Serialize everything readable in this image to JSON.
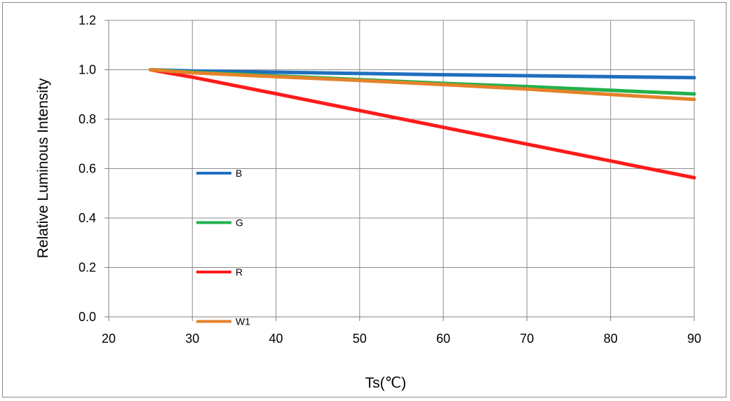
{
  "chart_data": {
    "type": "line",
    "xlabel": "Ts(℃)",
    "ylabel": "Relative Luminous Intensity",
    "xlim": [
      20,
      90
    ],
    "ylim": [
      0.0,
      1.2
    ],
    "x_ticks": [
      "20",
      "30",
      "40",
      "50",
      "60",
      "70",
      "80",
      "90"
    ],
    "y_ticks": [
      "0.0",
      "0.2",
      "0.4",
      "0.6",
      "0.8",
      "1.0",
      "1.2"
    ],
    "grid": true,
    "legend_position": "inside-left",
    "series": [
      {
        "name": "B",
        "color": "#1f6fbf",
        "x": [
          25,
          30,
          40,
          50,
          60,
          70,
          80,
          90
        ],
        "y": [
          1.0,
          0.995,
          0.99,
          0.985,
          0.98,
          0.976,
          0.972,
          0.968
        ]
      },
      {
        "name": "G",
        "color": "#22b14c",
        "x": [
          25,
          30,
          40,
          50,
          60,
          70,
          80,
          90
        ],
        "y": [
          1.0,
          0.99,
          0.975,
          0.96,
          0.945,
          0.932,
          0.917,
          0.902
        ]
      },
      {
        "name": "R",
        "color": "#ff1a1a",
        "x": [
          25,
          30,
          40,
          50,
          60,
          70,
          80,
          90
        ],
        "y": [
          1.0,
          0.97,
          0.903,
          0.835,
          0.767,
          0.699,
          0.631,
          0.563
        ]
      },
      {
        "name": "W1",
        "color": "#e4822a",
        "x": [
          25,
          30,
          40,
          50,
          60,
          70,
          80,
          90
        ],
        "y": [
          1.0,
          0.988,
          0.972,
          0.957,
          0.94,
          0.922,
          0.9,
          0.88
        ]
      }
    ]
  }
}
